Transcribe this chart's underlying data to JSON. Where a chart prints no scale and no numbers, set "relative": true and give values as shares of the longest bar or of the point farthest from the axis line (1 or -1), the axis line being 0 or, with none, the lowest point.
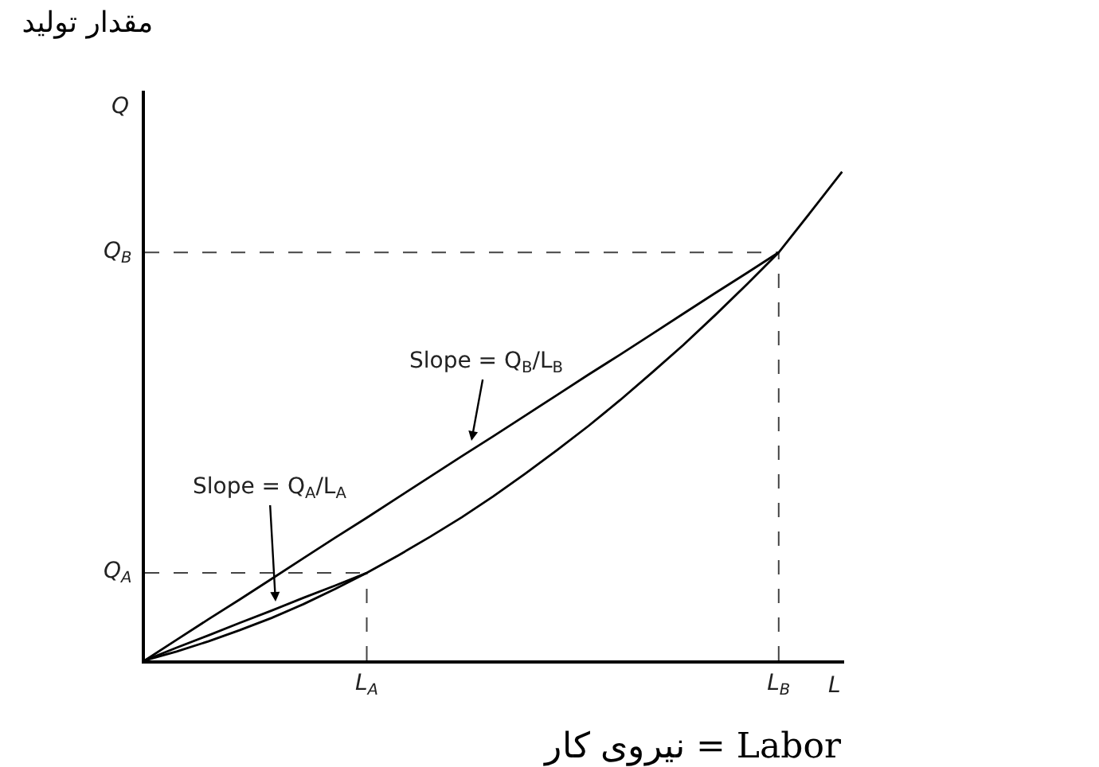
{
  "chart_data": {
    "type": "line",
    "relative": true,
    "title": "مقدار تولید",
    "xlabel": "L",
    "ylabel": "Q",
    "categories": [
      null,
      null,
      null,
      null,
      null,
      null,
      null,
      "L$_{A}$",
      null,
      null,
      null,
      null,
      null,
      null,
      null,
      null,
      null,
      null,
      null,
      null,
      "L$_{B}$",
      null,
      null
    ],
    "annotations": [
      "Slope = Q$_{B}$/L$_{B}$",
      "Slope = Q$_{A}$/L$_{A}$",
      "نیروی کار = Labor"
    ],
    "series": [
      {
        "color": "#000000",
        "values": [
          0,
          0.018,
          0.039,
          0.062,
          0.087,
          0.115,
          0.146,
          0.179,
          0.215,
          0.253,
          0.293,
          0.336,
          0.382,
          0.43,
          0.48,
          0.533,
          0.589,
          0.646,
          0.707,
          0.77,
          0.835,
          0.917,
          1
        ]
      },
      {
        "color": "#000000",
        "values": [
          0,
          0.042,
          0.084,
          0.125,
          0.167,
          0.209,
          0.251,
          0.292,
          0.334,
          0.376,
          0.418,
          0.459,
          0.501,
          0.543,
          0.585,
          0.626,
          0.668,
          0.71,
          0.752,
          0.793,
          0.835,
          null,
          null
        ]
      },
      {
        "color": "#000000",
        "values": [
          0,
          0.026,
          0.051,
          0.077,
          0.102,
          0.128,
          0.153,
          0.179,
          null,
          null,
          null,
          null,
          null,
          null,
          null,
          null,
          null,
          null,
          null,
          null,
          null,
          null,
          null
        ]
      }
    ],
    "ref_lines": [
      {
        "axis": "y",
        "value": 0.179,
        "label": "Q$_{A}$",
        "color": "#444444",
        "line_style": "dashed"
      },
      {
        "axis": "x",
        "value": "L$_{A}$",
        "color": "#444444",
        "line_style": "dashed"
      },
      {
        "axis": "y",
        "value": 0.835,
        "label": "Q$_{B}$",
        "color": "#444444",
        "line_style": "dashed"
      },
      {
        "axis": "x",
        "value": "L$_{B}$",
        "color": "#444444",
        "line_style": "dashed"
      }
    ]
  }
}
